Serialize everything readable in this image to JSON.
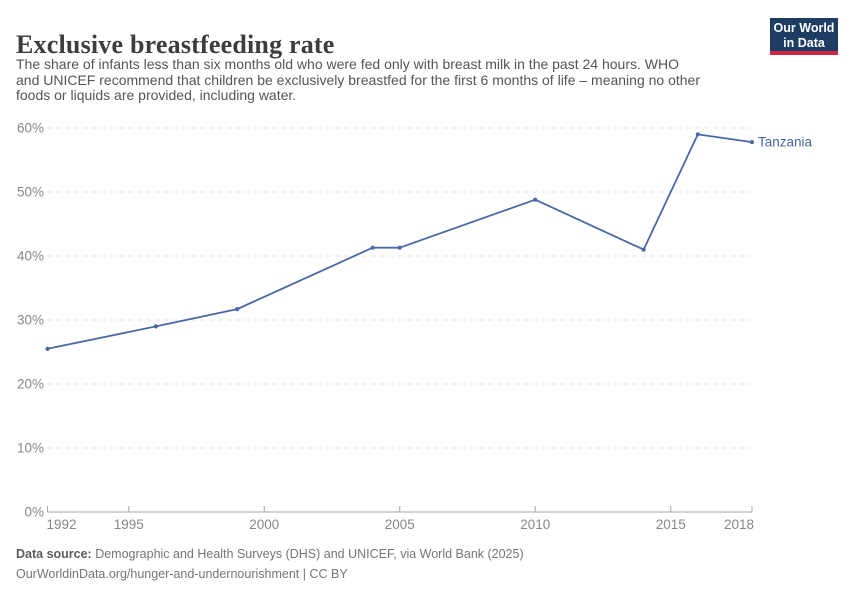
{
  "header": {
    "title": "Exclusive breastfeeding rate",
    "subtitle_lines": [
      "The share of infants less than six months old who were fed only with breast milk in the past 24 hours. WHO",
      "and UNICEF recommend that children be exclusively breastfed for the first 6 months of life – meaning no other",
      "foods or liquids are provided, including water."
    ],
    "logo": {
      "line1": "Our World",
      "line2": "in Data"
    }
  },
  "footer": {
    "source_label": "Data source:",
    "source_text": " Demographic and Health Surveys (DHS) and UNICEF, via World Bank (2025)",
    "note_text": "OurWorldinData.org/hunger-and-undernourishment | CC BY"
  },
  "colors": {
    "line": "#4a68a5",
    "grid": "#e0e0e0",
    "axis": "#a5a5a5",
    "tick_text": "#878787",
    "logo_bg": "#1d3d63",
    "logo_accent": "#cf2540"
  },
  "chart_data": {
    "type": "line",
    "title": "Exclusive breastfeeding rate",
    "xlabel": "",
    "ylabel": "",
    "xlim": [
      1992,
      2018
    ],
    "ylim": [
      0,
      60
    ],
    "xticks": [
      1992,
      1995,
      2000,
      2005,
      2010,
      2015,
      2018
    ],
    "yticks": [
      0,
      10,
      20,
      30,
      40,
      50,
      60
    ],
    "ytick_suffix": "%",
    "grid": "horizontal-dashed",
    "legend_position": "end-of-line-label",
    "series": [
      {
        "name": "Tanzania",
        "points": [
          [
            1992,
            25.5
          ],
          [
            1996,
            29.0
          ],
          [
            1999,
            31.7
          ],
          [
            2004,
            41.3
          ],
          [
            2005,
            41.3
          ],
          [
            2010,
            48.8
          ],
          [
            2014,
            41.0
          ],
          [
            2016,
            59.0
          ],
          [
            2018,
            57.8
          ]
        ]
      }
    ]
  }
}
